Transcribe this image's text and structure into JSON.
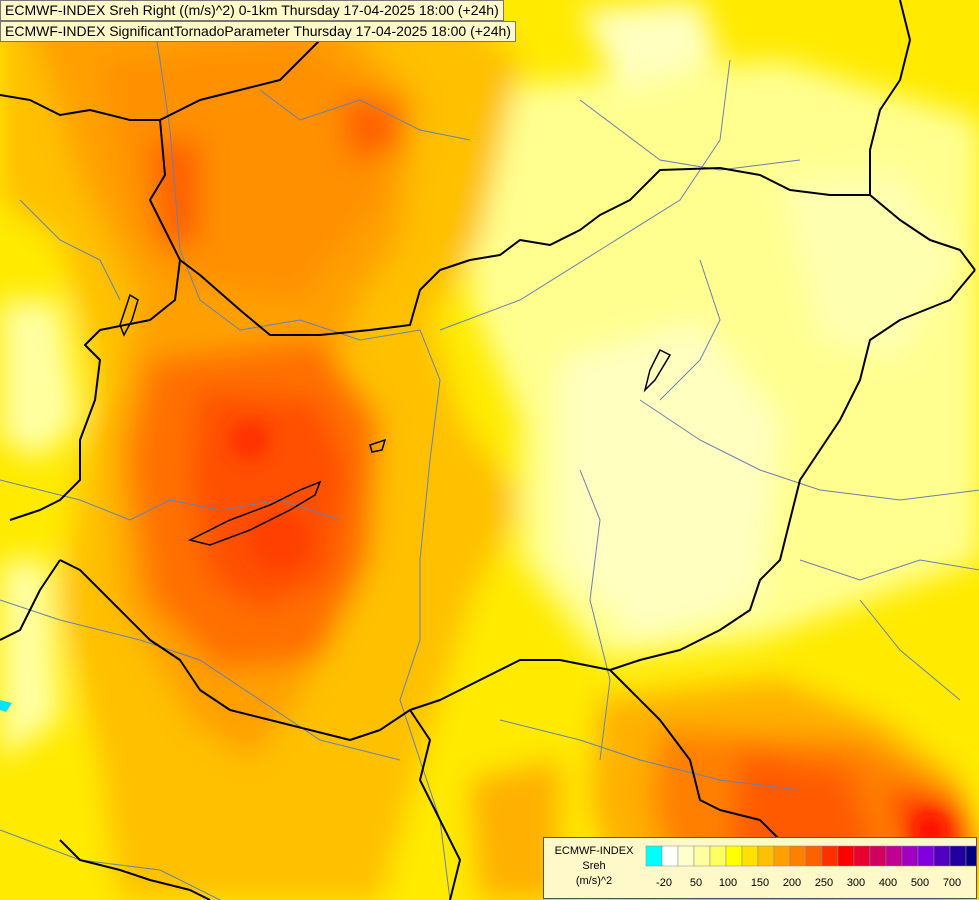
{
  "header": {
    "line1": "ECMWF-INDEX Sreh Right ((m/s)^2) 0-1km Thursday 17-04-2025 18:00 (+24h)",
    "line2": "ECMWF-INDEX SignificantTornadoParameter Thursday 17-04-2025 18:00 (+24h)"
  },
  "legend": {
    "title_line1": "ECMWF-INDEX",
    "title_line2": "Sreh",
    "title_line3": "(m/s)^2",
    "colors": [
      "#00ffff",
      "#ffffff",
      "#ffffd0",
      "#ffffa0",
      "#ffff60",
      "#ffff00",
      "#ffe000",
      "#ffc000",
      "#ffa000",
      "#ff8000",
      "#ff6000",
      "#ff3000",
      "#ff0000",
      "#e80030",
      "#d00060",
      "#c00090",
      "#a000c0",
      "#8000e0",
      "#5000c0",
      "#2000a0",
      "#000080"
    ],
    "ticks": [
      "-20",
      "50",
      "100",
      "150",
      "200",
      "250",
      "300",
      "400",
      "500",
      "700"
    ]
  }
}
